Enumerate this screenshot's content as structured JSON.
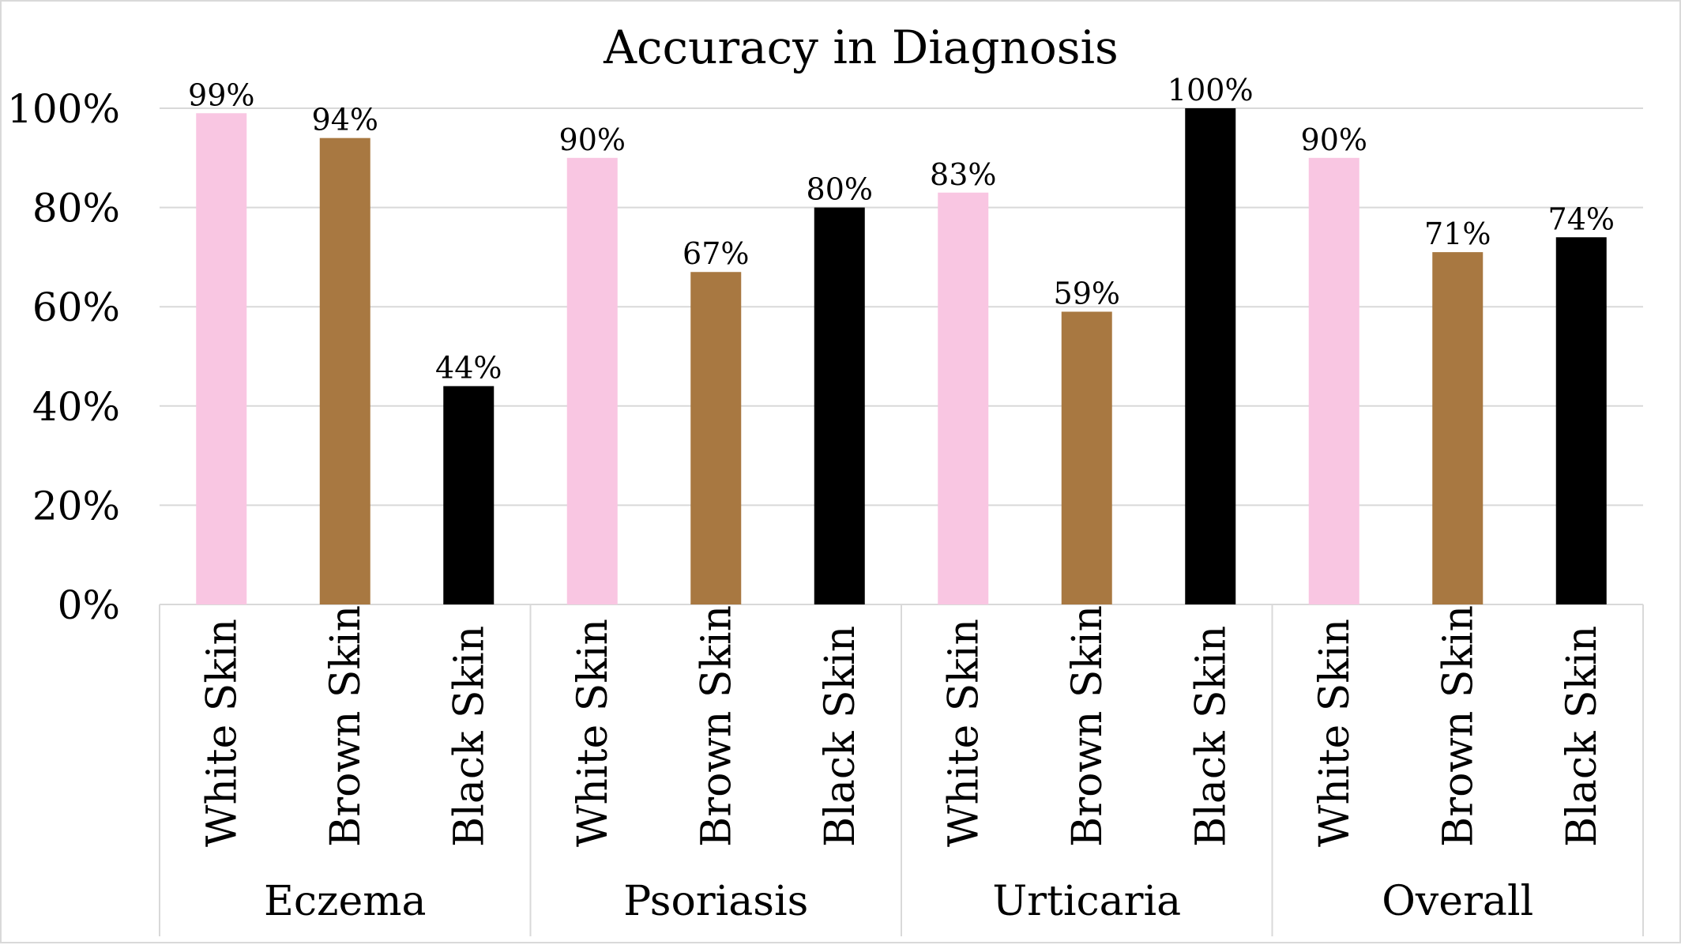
{
  "chart_data": {
    "type": "bar",
    "title": "Accuracy in Diagnosis",
    "xlabel": "",
    "ylabel": "",
    "ylim": [
      0,
      100
    ],
    "yticks": [
      0,
      20,
      40,
      60,
      80,
      100
    ],
    "ytick_labels": [
      "0%",
      "20%",
      "40%",
      "60%",
      "80%",
      "100%"
    ],
    "grid": true,
    "legend": "none",
    "groups": [
      "Eczema",
      "Psoriasis",
      "Urticaria",
      "Overall"
    ],
    "categories": [
      "White Skin",
      "Brown Skin",
      "Black Skin"
    ],
    "colors": {
      "White Skin": "#f9c6e2",
      "Brown Skin": "#a87841",
      "Black Skin": "#000000"
    },
    "values": [
      [
        99,
        94,
        44
      ],
      [
        90,
        67,
        80
      ],
      [
        83,
        59,
        100
      ],
      [
        90,
        71,
        74
      ]
    ],
    "value_labels": [
      [
        "99%",
        "94%",
        "44%"
      ],
      [
        "90%",
        "67%",
        "80%"
      ],
      [
        "83%",
        "59%",
        "100%"
      ],
      [
        "90%",
        "71%",
        "74%"
      ]
    ]
  }
}
